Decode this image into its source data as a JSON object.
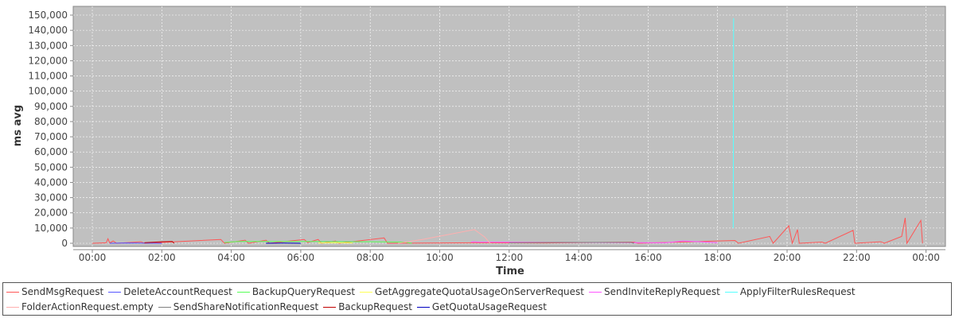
{
  "chart_data": {
    "type": "line",
    "title": "",
    "xlabel": "Time",
    "ylabel": "ms avg",
    "xlim_hours": [
      -0.5,
      24.5
    ],
    "ylim": [
      0,
      155000
    ],
    "grid": true,
    "legend_placement": "bottom",
    "x_ticks": [
      "00:00",
      "02:00",
      "04:00",
      "06:00",
      "08:00",
      "10:00",
      "12:00",
      "14:00",
      "16:00",
      "18:00",
      "20:00",
      "22:00",
      "00:00"
    ],
    "y_ticks": [
      "0",
      "10,000",
      "20,000",
      "30,000",
      "40,000",
      "50,000",
      "60,000",
      "70,000",
      "80,000",
      "90,000",
      "100,000",
      "110,000",
      "120,000",
      "130,000",
      "140,000",
      "150,000"
    ],
    "series": [
      {
        "name": "SendMsgRequest",
        "color": "#ff5555",
        "points": [
          [
            0,
            0
          ],
          [
            0.4,
            300
          ],
          [
            0.45,
            3000
          ],
          [
            0.5,
            200
          ],
          [
            0.6,
            1500
          ],
          [
            0.7,
            0
          ],
          [
            1.4,
            1000
          ],
          [
            1.5,
            0
          ],
          [
            3.7,
            2500
          ],
          [
            3.8,
            0
          ],
          [
            4.4,
            2000
          ],
          [
            4.5,
            0
          ],
          [
            5.0,
            2000
          ],
          [
            5.1,
            0
          ],
          [
            6.1,
            2500
          ],
          [
            6.2,
            500
          ],
          [
            6.5,
            2500
          ],
          [
            6.6,
            0
          ],
          [
            7.0,
            1500
          ],
          [
            7.1,
            0
          ],
          [
            8.4,
            3500
          ],
          [
            8.5,
            0
          ],
          [
            11.0,
            300
          ],
          [
            13.0,
            200
          ],
          [
            15.6,
            800
          ],
          [
            15.7,
            0
          ],
          [
            18.5,
            1800
          ],
          [
            18.6,
            0
          ],
          [
            19.5,
            4500
          ],
          [
            19.6,
            0
          ],
          [
            20.05,
            11500
          ],
          [
            20.15,
            0
          ],
          [
            20.3,
            9000
          ],
          [
            20.35,
            0
          ],
          [
            21.0,
            800
          ],
          [
            21.1,
            0
          ],
          [
            21.9,
            8500
          ],
          [
            21.95,
            0
          ],
          [
            22.7,
            1000
          ],
          [
            22.8,
            0
          ],
          [
            23.3,
            4500
          ],
          [
            23.4,
            16700
          ],
          [
            23.45,
            0
          ],
          [
            23.85,
            15000
          ],
          [
            23.9,
            0
          ]
        ]
      },
      {
        "name": "DeleteAccountRequest",
        "color": "#5555ff",
        "points": [
          [
            0.5,
            0
          ],
          [
            1,
            200
          ],
          [
            2,
            0
          ]
        ]
      },
      {
        "name": "BackupQueryRequest",
        "color": "#55ff55",
        "points": [
          [
            3.8,
            500
          ],
          [
            4.2,
            1200
          ],
          [
            6,
            1200
          ],
          [
            8,
            1000
          ],
          [
            9.0,
            800
          ],
          [
            9.2,
            0
          ]
        ]
      },
      {
        "name": "GetAggregateQuotaUsageOnServerRequest",
        "color": "#ffff55",
        "points": [
          [
            6.5,
            200
          ],
          [
            7,
            400
          ],
          [
            7.5,
            200
          ]
        ]
      },
      {
        "name": "SendInviteReplyRequest",
        "color": "#ff55ff",
        "points": [
          [
            10.9,
            800
          ],
          [
            11.0,
            1000
          ],
          [
            11.1,
            800
          ],
          [
            16.5,
            300
          ],
          [
            17.0,
            1500
          ],
          [
            17.5,
            1000
          ],
          [
            18,
            300
          ]
        ]
      },
      {
        "name": "ApplyFilterRulesRequest",
        "color": "#55ffff",
        "points": [
          [
            18.45,
            10000
          ],
          [
            18.46,
            148000
          ]
        ]
      },
      {
        "name": "FolderActionRequest.empty",
        "color": "#ffafaf",
        "points": [
          [
            8.8,
            0
          ],
          [
            9.5,
            2500
          ],
          [
            11.0,
            9000
          ],
          [
            11.3,
            4000
          ],
          [
            11.45,
            0
          ]
        ]
      },
      {
        "name": "SendShareNotificationRequest",
        "color": "#808080",
        "points": [
          [
            12,
            300
          ],
          [
            13.5,
            600
          ],
          [
            15.5,
            600
          ],
          [
            15.6,
            0
          ]
        ]
      },
      {
        "name": "BackupRequest",
        "color": "#c00000",
        "points": [
          [
            1.5,
            400
          ],
          [
            2.0,
            1000
          ],
          [
            2.3,
            1200
          ],
          [
            2.35,
            0
          ]
        ]
      },
      {
        "name": "GetQuotaUsageRequest",
        "color": "#0000c0",
        "points": [
          [
            5,
            0
          ],
          [
            5.5,
            100
          ],
          [
            6,
            0
          ]
        ]
      }
    ]
  }
}
